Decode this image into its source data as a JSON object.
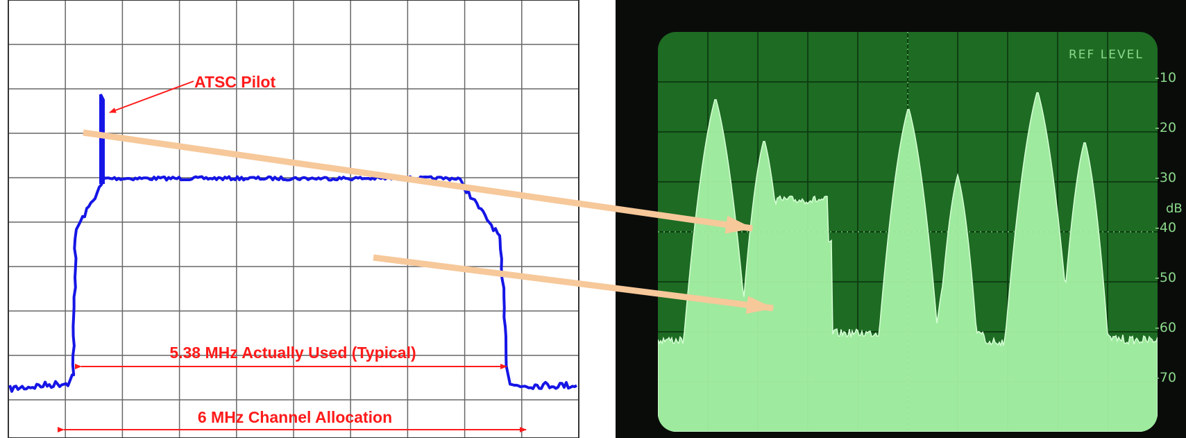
{
  "left_panel": {
    "pilot_label": "ATSC Pilot",
    "used_label": "5.38 MHz Actually Used (Typical)",
    "allocation_label": "6 MHz Channel Allocation",
    "annotation_color": "#ff1a1a",
    "trace_color": "#1515e6",
    "grid_color": "#555555"
  },
  "scope_panel": {
    "ref_label": "REF LEVEL",
    "unit_label": "dB",
    "scale_labels": [
      "-10",
      "-20",
      "-30",
      "-40",
      "-50",
      "-60",
      "-70"
    ],
    "screen_color": "#1e6b23",
    "trace_color": "#b8ffb8"
  },
  "arrows": {
    "color": "#f6c89a"
  }
}
